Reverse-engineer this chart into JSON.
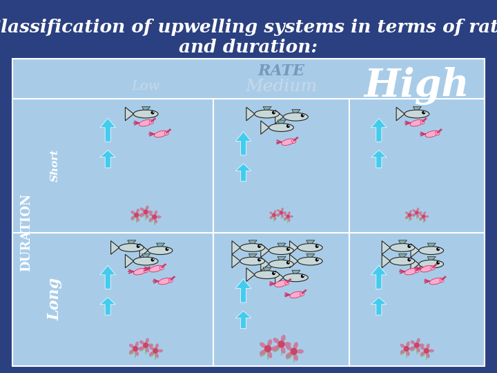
{
  "title_line1": "Classification of upwelling systems in terms of rate",
  "title_line2": "and duration:",
  "title_fontsize": 19,
  "title_color": "#ffffff",
  "bg_color_outer": "#2b4080",
  "bg_color_inner": "#a8cce8",
  "grid_line_color": "#ffffff",
  "rate_label": "RATE",
  "rate_color": "#7799bb",
  "col_labels": [
    "Low",
    "Medium",
    "High"
  ],
  "col_label_colors": [
    "#c8d8e8",
    "#c8d8e8",
    "#ffffff"
  ],
  "col_label_sizes": [
    14,
    18,
    40
  ],
  "duration_label": "DURATION",
  "duration_color": "#ffffff",
  "row_labels": [
    "Short",
    "Long"
  ],
  "row_label_color": "#ffffff",
  "arrow_color": "#44ccee",
  "fish_body_color": "#c8d8d8",
  "fish_fin_color": "#88aaaa",
  "shrimp_color": "#ffaacc",
  "flower_color": "#cc7799",
  "leaf_color": "#88bb88"
}
